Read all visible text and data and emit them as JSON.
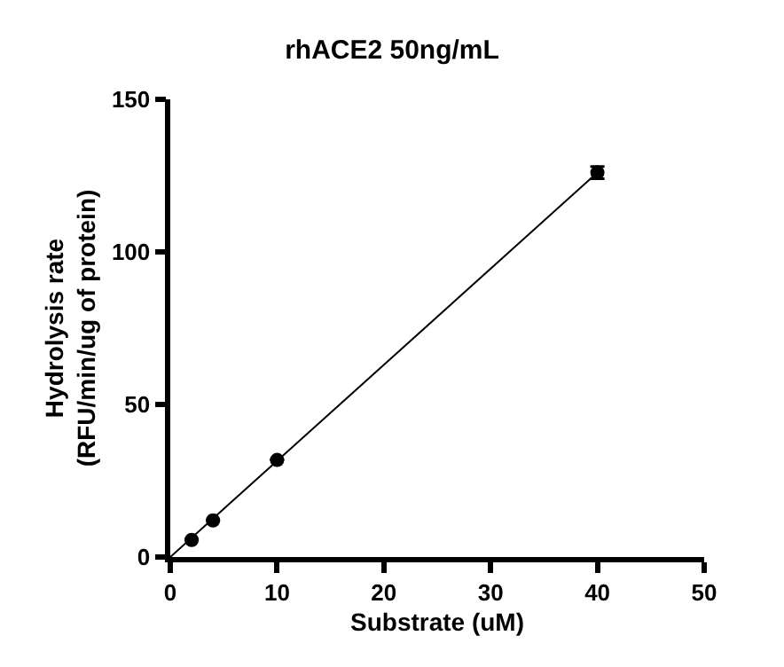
{
  "chart_data": {
    "type": "scatter",
    "title": "rhACE2 50ng/mL",
    "xlabel": "Substrate (uM)",
    "ylabel": "Hydrolysis rate\n(RFU/min/ug of protein)",
    "series": [
      {
        "color": "#000000",
        "x": [
          2,
          4,
          10,
          40
        ],
        "values": [
          5.6,
          12,
          31.8,
          126
        ],
        "errors": [
          null,
          null,
          null,
          2
        ]
      },
      {
        "type": "line",
        "color": "#000000",
        "x": [
          0,
          40
        ],
        "values": [
          0,
          126
        ]
      }
    ],
    "xlim": [
      0,
      50
    ],
    "xticks": [
      0,
      10,
      20,
      30,
      40,
      50
    ],
    "ylim": [
      0,
      150
    ],
    "yticks": [
      0,
      50,
      100,
      150
    ],
    "grid": false,
    "marker": "circle",
    "line_style": "solid"
  }
}
